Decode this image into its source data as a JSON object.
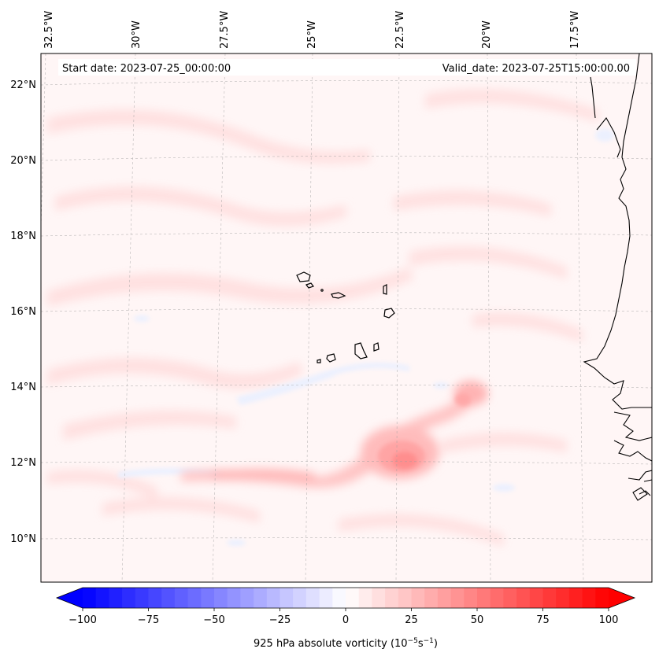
{
  "map": {
    "start_label": "Start date: 2023-07-25_00:00:00",
    "valid_label": "Valid_date: 2023-07-25T15:00:00.00",
    "lon_labels": [
      "32.5°W",
      "30°W",
      "27.5°W",
      "25°W",
      "22.5°W",
      "20°W",
      "17.5°W"
    ],
    "lat_labels": [
      "22°N",
      "20°N",
      "18°N",
      "16°N",
      "14°N",
      "12°N",
      "10°N"
    ]
  },
  "colorbar": {
    "label": "925 hPa absolute vorticity (10",
    "label_exp1": "−5",
    "label_mid": "s",
    "label_exp2": "−1",
    "label_end": ")",
    "ticks": [
      "−100",
      "−75",
      "−50",
      "−25",
      "0",
      "25",
      "50",
      "75",
      "100"
    ],
    "min": -100,
    "max": 100,
    "step": 5,
    "colors": {
      "low": "#0000ff",
      "mid": "#ffffff",
      "high": "#ff0000"
    }
  }
}
